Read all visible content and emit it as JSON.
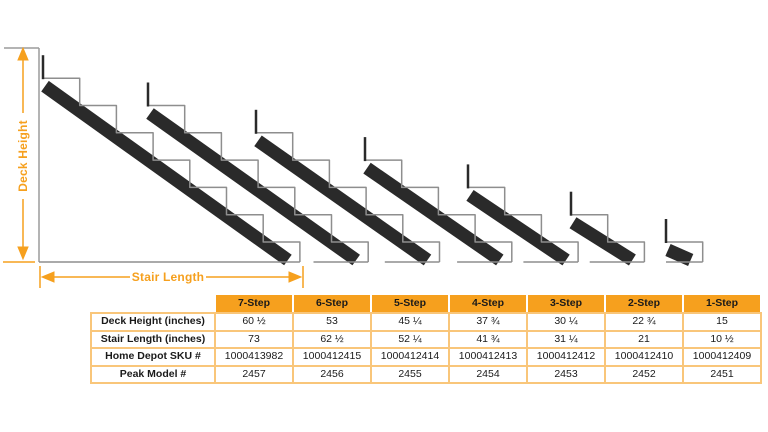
{
  "diagram": {
    "deck_height_label": "Deck Height",
    "stair_length_label": "Stair Length",
    "stringer_steps": [
      7,
      6,
      5,
      4,
      3,
      2,
      1
    ]
  },
  "table": {
    "columns": [
      "7-Step",
      "6-Step",
      "5-Step",
      "4-Step",
      "3-Step",
      "2-Step",
      "1-Step"
    ],
    "rows": [
      {
        "label": "Deck Height (inches)",
        "values": [
          "60 ½",
          "53",
          "45 ¼",
          "37 ¾",
          "30 ¼",
          "22 ¾",
          "15"
        ]
      },
      {
        "label": "Stair Length (inches)",
        "values": [
          "73",
          "62 ½",
          "52 ¼",
          "41 ¾",
          "31 ¼",
          "21",
          "10 ½"
        ]
      },
      {
        "label": "Home Depot SKU #",
        "values": [
          "1000413982",
          "1000412415",
          "1000412414",
          "1000412413",
          "1000412412",
          "1000412410",
          "1000412409"
        ]
      },
      {
        "label": "Peak Model #",
        "values": [
          "2457",
          "2456",
          "2455",
          "2454",
          "2453",
          "2452",
          "2451"
        ]
      }
    ]
  },
  "colors": {
    "accent_orange": "#F6A01E",
    "table_border": "#F9C67A",
    "beam_black": "#2A2A2A",
    "outline_gray": "#8E8E8E",
    "text_black": "#1A1A1A"
  }
}
